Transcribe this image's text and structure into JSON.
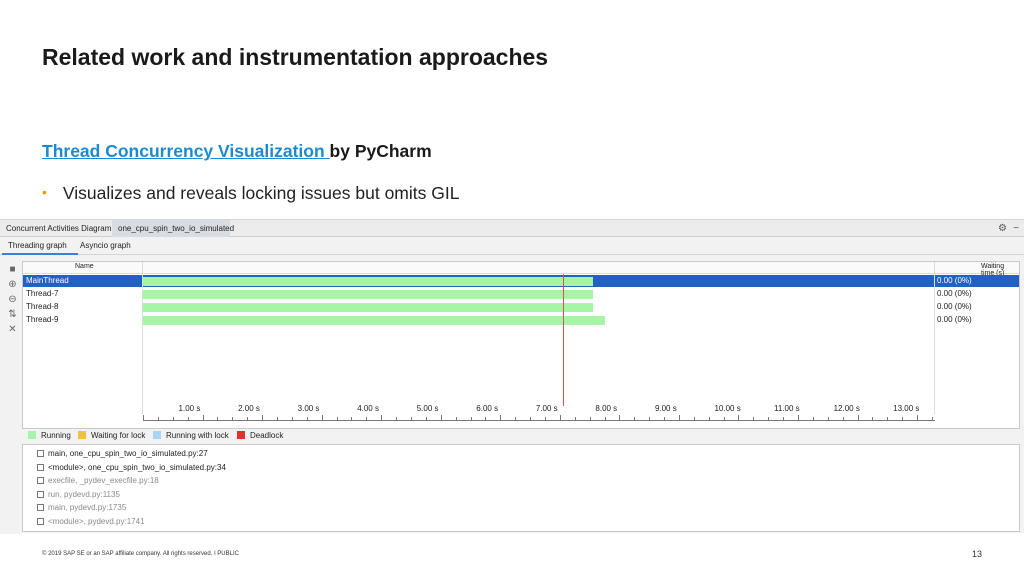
{
  "slide": {
    "title": "Related work and instrumentation approaches",
    "subtitle_link": "Thread Concurrency Visualization ",
    "subtitle_rest": "by PyCharm",
    "bullet": "Visualizes and reveals locking issues but omits GIL"
  },
  "ide": {
    "tabs": [
      "Concurrent Activities Diagram",
      "one_cpu_spin_two_io_simulated"
    ],
    "subtabs": [
      "Threading graph",
      "Asyncio graph"
    ],
    "header": {
      "name": "Name",
      "waiting": "Waiting time (s)"
    },
    "threads": [
      {
        "name": "MainThread",
        "waiting": "0.00 (0%)",
        "running_end_s": 7.55,
        "selected": true
      },
      {
        "name": "Thread-7",
        "waiting": "0.00 (0%)",
        "running_end_s": 7.55,
        "selected": false
      },
      {
        "name": "Thread-8",
        "waiting": "0.00 (0%)",
        "running_end_s": 7.55,
        "selected": false
      },
      {
        "name": "Thread-9",
        "waiting": "0.00 (0%)",
        "running_end_s": 7.75,
        "selected": false
      }
    ],
    "timeline": {
      "max_s": 13.3,
      "cursor_s": 7.05,
      "ticks": [
        "1.00 s",
        "2.00 s",
        "3.00 s",
        "4.00 s",
        "5.00 s",
        "6.00 s",
        "7.00 s",
        "8.00 s",
        "9.00 s",
        "10.00 s",
        "11.00 s",
        "12.00 s",
        "13.00 s"
      ]
    },
    "legend": [
      {
        "label": "Running",
        "color": "#a6f5a6"
      },
      {
        "label": "Waiting for lock",
        "color": "#f0c040"
      },
      {
        "label": "Running with lock",
        "color": "#a8d4f5"
      },
      {
        "label": "Deadlock",
        "color": "#e03030"
      }
    ],
    "stack": [
      {
        "text": "main, one_cpu_spin_two_io_simulated.py:27",
        "dim": false
      },
      {
        "text": "<module>, one_cpu_spin_two_io_simulated.py:34",
        "dim": false
      },
      {
        "text": "execfile, _pydev_execfile.py:18",
        "dim": true
      },
      {
        "text": "run, pydevd.py:1135",
        "dim": true
      },
      {
        "text": "main, pydevd.py:1735",
        "dim": true
      },
      {
        "text": "<module>, pydevd.py:1741",
        "dim": true
      }
    ]
  },
  "footer": {
    "copyright": "© 2019 SAP SE or an SAP affiliate company. All rights reserved.  ǀ  PUBLIC",
    "page": "13"
  }
}
